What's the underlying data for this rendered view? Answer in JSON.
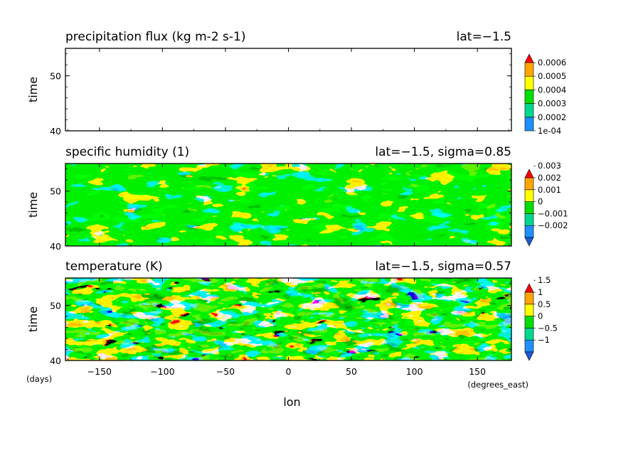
{
  "chart_data": [
    {
      "type": "heatmap",
      "title": "precipitation flux (kg m-2 s-1)",
      "subtitle": "lat=−1.5",
      "ylabel": "time",
      "xlim": [
        -177,
        177
      ],
      "ylim": [
        40,
        55
      ],
      "yticks": [
        "40",
        "50"
      ],
      "xticks": [],
      "colorbar": {
        "labels": [
          "1e-04",
          "0.0002",
          "0.0003",
          "0.0004",
          "0.0005",
          "0.0006"
        ],
        "colors": [
          "#1e90ff",
          "#00d890",
          "#00e000",
          "#ffff00",
          "#ffa500",
          "#ff0000"
        ],
        "under_color": "#ffffff",
        "over_color": "#ff0000",
        "extend": "max"
      }
    },
    {
      "type": "heatmap",
      "title": "specific humidity (1)",
      "subtitle": "lat=−1.5, sigma=0.85",
      "ylabel": "time",
      "xlim": [
        -177,
        177
      ],
      "ylim": [
        40,
        55
      ],
      "yticks": [
        "40",
        "50"
      ],
      "xticks": [],
      "colorbar": {
        "labels": [
          "−0.002",
          "−0.001",
          "0",
          "0.001",
          "0.002",
          "0.003"
        ],
        "colors": [
          "#1e5ad7",
          "#1e90ff",
          "#00d890",
          "#00e000",
          "#ffff00",
          "#ffa500",
          "#ff0000"
        ],
        "extend": "both"
      }
    },
    {
      "type": "heatmap",
      "title": "temperature (K)",
      "subtitle": "lat=−1.5, sigma=0.57",
      "ylabel": "time",
      "yunit": "(days)",
      "xlabel": "lon",
      "xunit": "(degrees_east)",
      "xlim": [
        -177,
        177
      ],
      "ylim": [
        40,
        55
      ],
      "yticks": [
        "40",
        "50"
      ],
      "xticks": [
        "−150",
        "−100",
        "−50",
        "0",
        "50",
        "100",
        "150"
      ],
      "colorbar": {
        "labels": [
          "−1",
          "−0.5",
          "0",
          "0.5",
          "1",
          "1.5"
        ],
        "colors": [
          "#1e5ad7",
          "#1e90ff",
          "#00d890",
          "#00e000",
          "#ffff00",
          "#ffa500",
          "#ff0000"
        ],
        "extend": "both"
      }
    }
  ]
}
